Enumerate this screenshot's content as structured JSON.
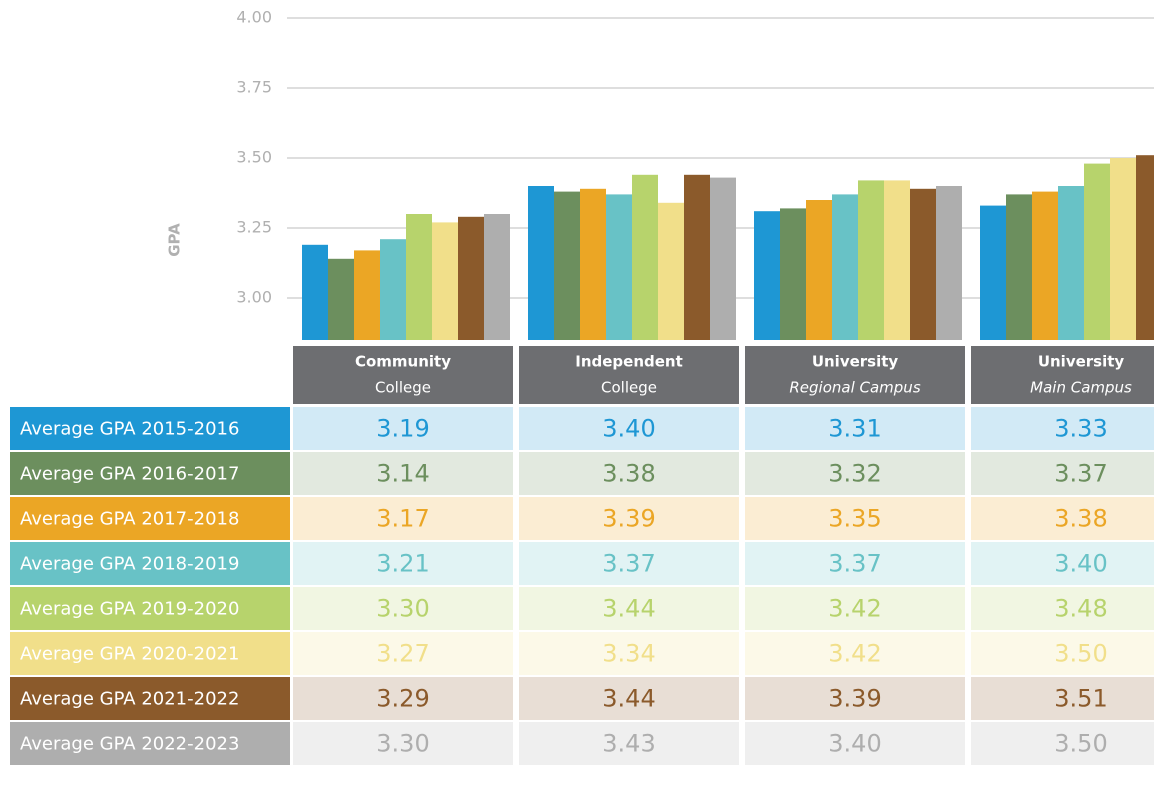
{
  "chart_data": {
    "type": "bar",
    "y_label": "GPA",
    "categories": [
      [
        "Community",
        "College"
      ],
      [
        "Independent",
        "College"
      ],
      [
        "University",
        "Regional Campus"
      ],
      [
        "University",
        "Main Campus"
      ]
    ],
    "ylim": [
      2.85,
      4.0
    ],
    "yticks": [
      {
        "value": 3,
        "label": "3.00"
      },
      {
        "value": 3.25,
        "label": "3.25"
      },
      {
        "value": 3.5,
        "label": "3.50"
      },
      {
        "value": 3.75,
        "label": "3.75"
      },
      {
        "value": 4,
        "label": "4.00"
      }
    ],
    "grid": true,
    "series": [
      {
        "name": "Average GPA 2015-2016",
        "color": "#1e97d4",
        "values": [
          3.19,
          3.4,
          3.31,
          3.33
        ],
        "value_labels": [
          "3.19",
          "3.40",
          "3.31",
          "3.33"
        ]
      },
      {
        "name": "Average GPA 2016-2017",
        "color": "#6c8f5e",
        "values": [
          3.14,
          3.38,
          3.32,
          3.37
        ],
        "value_labels": [
          "3.14",
          "3.38",
          "3.32",
          "3.37"
        ]
      },
      {
        "name": "Average GPA 2017-2018",
        "color": "#eba625",
        "values": [
          3.17,
          3.39,
          3.35,
          3.38
        ],
        "value_labels": [
          "3.17",
          "3.39",
          "3.35",
          "3.38"
        ]
      },
      {
        "name": "Average GPA 2018-2019",
        "color": "#68c2c6",
        "values": [
          3.21,
          3.37,
          3.37,
          3.4
        ],
        "value_labels": [
          "3.21",
          "3.37",
          "3.37",
          "3.40"
        ]
      },
      {
        "name": "Average GPA 2019-2020",
        "color": "#b7d36c",
        "values": [
          3.3,
          3.44,
          3.42,
          3.48
        ],
        "value_labels": [
          "3.30",
          "3.44",
          "3.42",
          "3.48"
        ]
      },
      {
        "name": "Average GPA 2020-2021",
        "color": "#f1df8a",
        "values": [
          3.27,
          3.34,
          3.42,
          3.5
        ],
        "value_labels": [
          "3.27",
          "3.34",
          "3.42",
          "3.50"
        ]
      },
      {
        "name": "Average GPA 2021-2022",
        "color": "#8b5a2b",
        "values": [
          3.29,
          3.44,
          3.39,
          3.51
        ],
        "value_labels": [
          "3.29",
          "3.44",
          "3.39",
          "3.51"
        ]
      },
      {
        "name": "Average GPA 2022-2023",
        "color": "#aeaeae",
        "values": [
          3.3,
          3.43,
          3.4,
          3.5
        ],
        "value_labels": [
          "3.30",
          "3.43",
          "3.40",
          "3.50"
        ]
      }
    ]
  }
}
